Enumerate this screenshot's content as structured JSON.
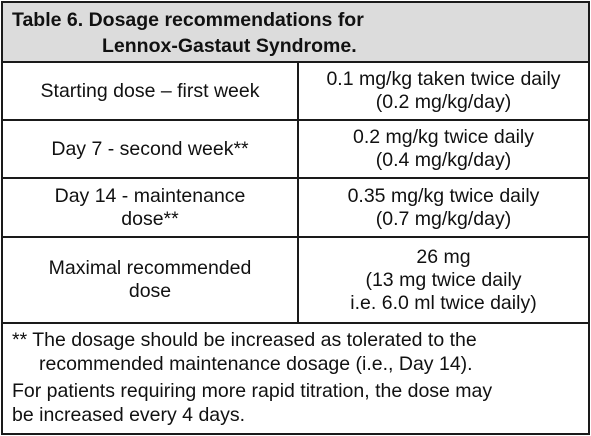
{
  "table": {
    "title_line1": "Table 6. Dosage recommendations for",
    "title_line2": "Lennox-Gastaut Syndrome.",
    "rows": [
      {
        "left": [
          "Starting dose – first week"
        ],
        "right": [
          "0.1 mg/kg taken twice daily",
          "(0.2 mg/kg/day)"
        ]
      },
      {
        "left": [
          "Day 7 - second week**"
        ],
        "right": [
          "0.2 mg/kg twice daily",
          "(0.4 mg/kg/day)"
        ]
      },
      {
        "left": [
          "Day 14 - maintenance",
          "dose**"
        ],
        "right": [
          "0.35 mg/kg twice daily",
          "(0.7 mg/kg/day)"
        ]
      },
      {
        "left": [
          "Maximal recommended",
          "dose"
        ],
        "right": [
          "26 mg",
          "(13 mg twice daily",
          "i.e. 6.0 ml twice daily)"
        ]
      }
    ],
    "footnote_line1": "** The dosage should be increased as tolerated to the",
    "footnote_line2": "recommended maintenance dosage (i.e., Day 14).",
    "footnote_line3": "For patients requiring more rapid titration, the dose may",
    "footnote_line4": "be increased every 4 days."
  }
}
